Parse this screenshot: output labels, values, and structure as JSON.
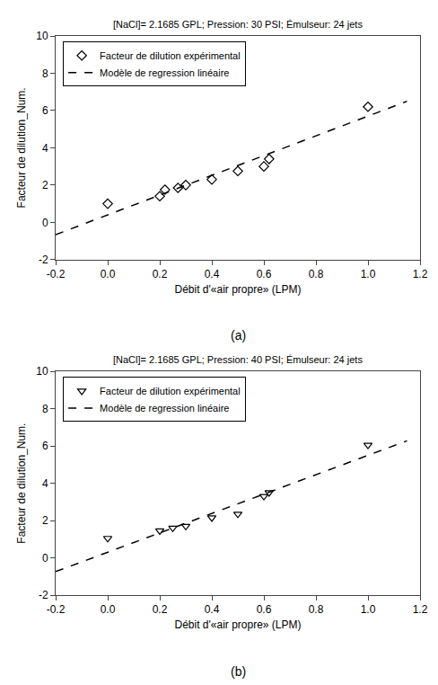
{
  "chart_data": [
    {
      "type": "scatter",
      "title": "[NaCl]= 2.1685 GPL; Pression: 30 PSI; Émulseur: 24 jets",
      "xlabel": "Débit d'«air propre» (LPM)",
      "ylabel": "Facteur de dilution_Num.",
      "annotations": [
        "(a)"
      ],
      "series": [
        {
          "name": "Facteur de dilution expérimental",
          "type": "scatter",
          "marker": "diamond",
          "color": "#000000",
          "x": [
            0.0,
            0.2,
            0.22,
            0.27,
            0.3,
            0.4,
            0.5,
            0.6,
            0.62,
            1.0
          ],
          "values": [
            1.0,
            1.4,
            1.75,
            1.85,
            2.0,
            2.3,
            2.75,
            3.0,
            3.4,
            6.2
          ]
        },
        {
          "name": "Modèle de regression linéaire",
          "type": "line",
          "line_style": "dashed",
          "color": "#000000",
          "x": [
            -0.2,
            1.15
          ],
          "values": [
            -0.66,
            6.495
          ]
        }
      ],
      "xlim": [
        -0.2,
        1.2
      ],
      "ylim": [
        -2,
        10
      ],
      "xticks": [
        -0.2,
        {
          "value": 0,
          "label": "0.0"
        },
        0.2,
        0.4,
        0.6,
        0.8,
        {
          "value": 1,
          "label": "1.0"
        },
        1.2
      ],
      "yticks": [
        -2,
        0,
        2,
        4,
        6,
        8,
        10
      ],
      "grid": false,
      "legend": "upper left"
    },
    {
      "type": "scatter",
      "title": "[NaCl]= 2.1685 GPL; Pression: 40 PSI; Émulseur: 24 jets",
      "xlabel": "Débit d'«air propre» (LPM)",
      "ylabel": "Facteur de dilution_Num.",
      "annotations": [
        "(b)"
      ],
      "series": [
        {
          "name": "Facteur de dilution expérimental",
          "type": "scatter",
          "marker": "triangle-down",
          "color": "#000000",
          "x": [
            0.0,
            0.2,
            0.25,
            0.3,
            0.4,
            0.5,
            0.6,
            0.62,
            1.0
          ],
          "values": [
            1.05,
            1.45,
            1.6,
            1.7,
            2.15,
            2.35,
            3.3,
            3.5,
            6.05
          ]
        },
        {
          "name": "Modèle de regression linéaire",
          "type": "line",
          "line_style": "dashed",
          "color": "#000000",
          "x": [
            -0.2,
            1.15
          ],
          "values": [
            -0.74,
            6.28
          ]
        }
      ],
      "xlim": [
        -0.2,
        1.2
      ],
      "ylim": [
        -2,
        10
      ],
      "xticks": [
        -0.2,
        {
          "value": 0,
          "label": "0.0"
        },
        0.2,
        0.4,
        0.6,
        0.8,
        {
          "value": 1,
          "label": "1.0"
        },
        1.2
      ],
      "yticks": [
        -2,
        0,
        2,
        4,
        6,
        8,
        10
      ],
      "grid": false,
      "legend": "upper left"
    }
  ]
}
